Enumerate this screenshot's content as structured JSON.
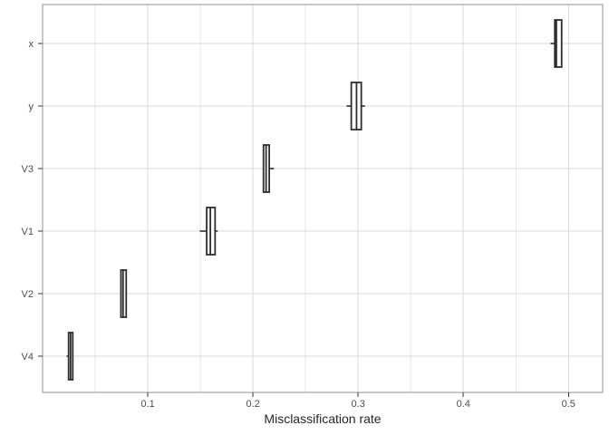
{
  "chart_data": {
    "type": "boxplot",
    "orientation": "horizontal",
    "title": "",
    "xlabel": "Misclassification rate",
    "ylabel": "",
    "categories_top_to_bottom": [
      "x",
      "y",
      "V3",
      "V1",
      "V2",
      "V4"
    ],
    "x_ticks": [
      0.1,
      0.2,
      0.3,
      0.4,
      0.5
    ],
    "x_minor_ticks": [
      0.05,
      0.15,
      0.25,
      0.35,
      0.45
    ],
    "xlim": [
      0,
      0.5325
    ],
    "grid": "vertical major+minor, horizontal major at each category",
    "legend": "none",
    "series": [
      {
        "category": "x",
        "whisker_low": 0.483,
        "q1": 0.487,
        "median": 0.4885,
        "q3": 0.4935,
        "whisker_high": 0.4935
      },
      {
        "category": "y",
        "whisker_low": 0.289,
        "q1": 0.2935,
        "median": 0.2985,
        "q3": 0.303,
        "whisker_high": 0.3065
      },
      {
        "category": "V3",
        "whisker_low": 0.21,
        "q1": 0.21,
        "median": 0.2125,
        "q3": 0.2155,
        "whisker_high": 0.22
      },
      {
        "category": "V1",
        "whisker_low": 0.1495,
        "q1": 0.156,
        "median": 0.1595,
        "q3": 0.164,
        "whisker_high": 0.1665
      },
      {
        "category": "V2",
        "whisker_low": 0.074,
        "q1": 0.0745,
        "median": 0.0765,
        "q3": 0.0795,
        "whisker_high": 0.0795
      },
      {
        "category": "V4",
        "whisker_low": 0.0228,
        "q1": 0.0247,
        "median": 0.0266,
        "q3": 0.0287,
        "whisker_high": 0.0287
      }
    ]
  },
  "style": {
    "background": "#ffffff",
    "panel_fill": "#ffffff",
    "panel_border": "#a5a5a5",
    "grid_major": "#d9d9d9",
    "grid_minor": "#e7e7e7",
    "box_stroke": "#2e2e2e",
    "box_fill": "#ffffff",
    "axis_tick_color": "#333333",
    "tick_label_color": "#4d4d4d",
    "axis_title_color": "#262626"
  }
}
